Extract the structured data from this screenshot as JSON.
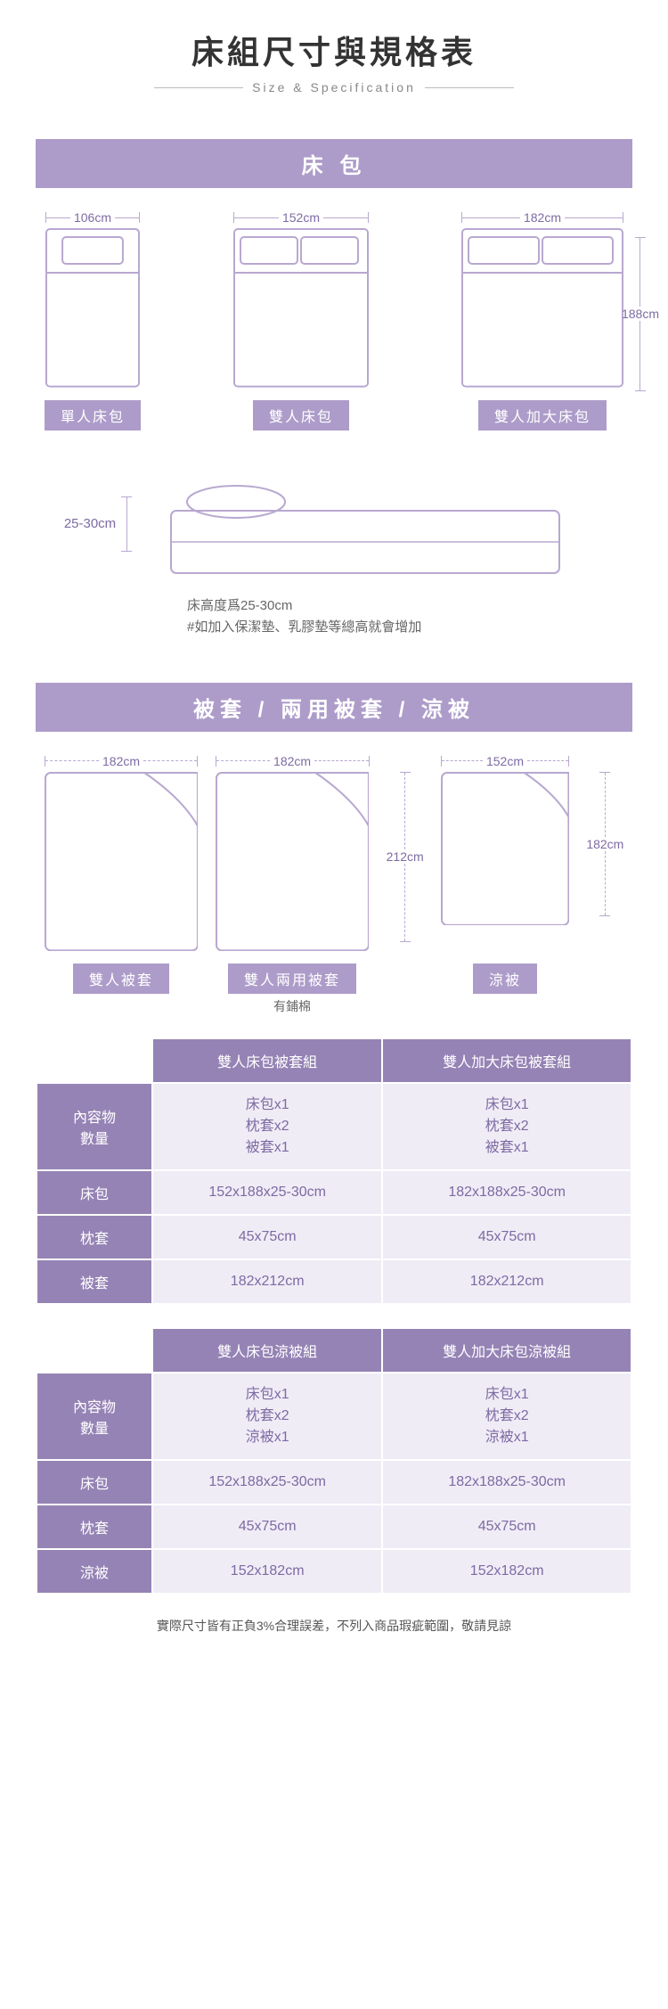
{
  "colors": {
    "accent": "#ad9cc9",
    "accent_dark": "#9583b5",
    "cell_bg": "#f0ecf6",
    "line": "#b8a8d0",
    "text_dim": "#7d6ba3"
  },
  "header": {
    "title": "床組尺寸與規格表",
    "subtitle": "Size & Specification"
  },
  "section1": {
    "bar": "床 包",
    "beds": [
      {
        "width_label": "106cm",
        "name": "單人床包",
        "pillows": 1,
        "rel_w": 106
      },
      {
        "width_label": "152cm",
        "name": "雙人床包",
        "pillows": 2,
        "rel_w": 152
      },
      {
        "width_label": "182cm",
        "name": "雙人加大床包",
        "pillows": 2,
        "rel_w": 182
      }
    ],
    "height_label": "188cm",
    "thickness_label": "25-30cm",
    "note_line1": "床高度爲25-30cm",
    "note_line2": "#如加入保潔墊、乳膠墊等總高就會增加"
  },
  "section2": {
    "bar": "被套 / 兩用被套 / 涼被",
    "covers": [
      {
        "width_label": "182cm",
        "name": "雙人被套",
        "sub": "",
        "rel_w": 182,
        "rel_h": 212
      },
      {
        "width_label": "182cm",
        "name": "雙人兩用被套",
        "sub": "有鋪棉",
        "rel_w": 182,
        "rel_h": 212
      },
      {
        "width_label": "152cm",
        "name": "涼被",
        "sub": "",
        "rel_w": 152,
        "rel_h": 182
      }
    ],
    "height_label_212": "212cm",
    "height_label_182": "182cm"
  },
  "table1": {
    "col_headers": [
      "雙人床包被套組",
      "雙人加大床包被套組"
    ],
    "rows": [
      {
        "h": "內容物\n數量",
        "c": [
          "床包x1\n枕套x2\n被套x1",
          "床包x1\n枕套x2\n被套x1"
        ]
      },
      {
        "h": "床包",
        "c": [
          "152x188x25-30cm",
          "182x188x25-30cm"
        ]
      },
      {
        "h": "枕套",
        "c": [
          "45x75cm",
          "45x75cm"
        ]
      },
      {
        "h": "被套",
        "c": [
          "182x212cm",
          "182x212cm"
        ]
      }
    ]
  },
  "table2": {
    "col_headers": [
      "雙人床包涼被組",
      "雙人加大床包涼被組"
    ],
    "rows": [
      {
        "h": "內容物\n數量",
        "c": [
          "床包x1\n枕套x2\n涼被x1",
          "床包x1\n枕套x2\n涼被x1"
        ]
      },
      {
        "h": "床包",
        "c": [
          "152x188x25-30cm",
          "182x188x25-30cm"
        ]
      },
      {
        "h": "枕套",
        "c": [
          "45x75cm",
          "45x75cm"
        ]
      },
      {
        "h": "涼被",
        "c": [
          "152x182cm",
          "152x182cm"
        ]
      }
    ]
  },
  "disclaimer": "實際尺寸皆有正負3%合理誤差，不列入商品瑕疵範圍，敬請見諒"
}
